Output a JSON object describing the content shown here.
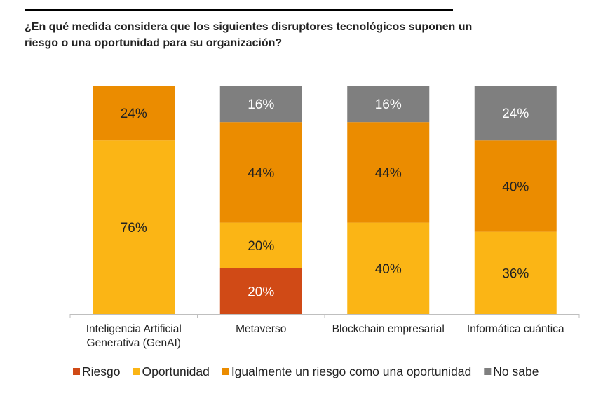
{
  "chart_data": {
    "type": "bar",
    "stacked": true,
    "title": "¿En qué medida considera que los siguientes disruptores tecnológicos suponen un riesgo o una oportunidad para su organización?",
    "categories": [
      "Inteligencia Artificial Generativa (GenAI)",
      "Metaverso",
      "Blockchain empresarial",
      "Informática cuántica"
    ],
    "category_lines": [
      [
        "Inteligencia Artificial",
        "Generativa (GenAI)"
      ],
      [
        "Metaverso"
      ],
      [
        "Blockchain empresarial"
      ],
      [
        "Informática cuántica"
      ]
    ],
    "series": [
      {
        "name": "Riesgo",
        "color": "#D04A16",
        "label_color": "#FFFFFF",
        "values": [
          0,
          20,
          0,
          0
        ]
      },
      {
        "name": "Oportunidad",
        "color": "#FBB515",
        "label_color": "#222222",
        "values": [
          76,
          20,
          40,
          36
        ]
      },
      {
        "name": "Igualmente un riesgo como una oportunidad",
        "color": "#EB8C00",
        "label_color": "#222222",
        "values": [
          24,
          44,
          44,
          40
        ]
      },
      {
        "name": "No sabe",
        "color": "#7F7F7F",
        "label_color": "#FFFFFF",
        "values": [
          0,
          16,
          16,
          24
        ]
      }
    ],
    "value_suffix": "%",
    "ylim": [
      0,
      100
    ],
    "grid": false,
    "legend": "bottom"
  }
}
